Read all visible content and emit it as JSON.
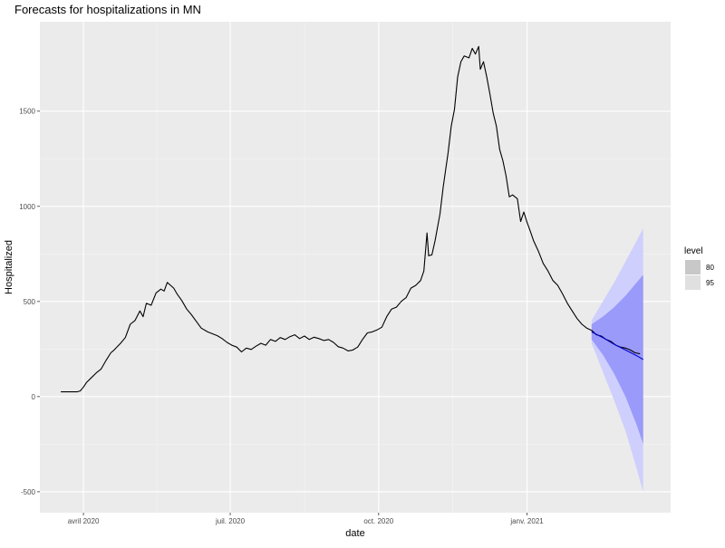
{
  "chart_data": {
    "type": "line",
    "title": "Forecasts for hospitalizations in MN",
    "xlabel": "date",
    "ylabel": "Hospitalized",
    "x_ticks": [
      "avril 2020",
      "juil. 2020",
      "oct. 2020",
      "janv. 2021"
    ],
    "x_tick_dates": [
      "2020-04-01",
      "2020-07-01",
      "2020-10-01",
      "2021-01-01"
    ],
    "xlim": [
      "2020-03-05",
      "2021-03-31"
    ],
    "y_ticks": [
      -500,
      0,
      500,
      1000,
      1500
    ],
    "ylim": [
      -610,
      1970
    ],
    "grid": true,
    "legend": {
      "title": "level",
      "placement": "right",
      "entries": [
        {
          "label": "80",
          "color": "#c8c8c8"
        },
        {
          "label": "95",
          "color": "#e0e0e0"
        }
      ]
    },
    "colors": {
      "panel": "#ebebeb",
      "grid_major": "#ffffff",
      "series": "#000000",
      "forecast_mean": "#0000cc",
      "band_80": "#9a9afb",
      "band_95": "#cfcffd"
    },
    "series": [
      {
        "type": "observed",
        "points": [
          [
            "2020-03-18",
            25
          ],
          [
            "2020-03-20",
            25
          ],
          [
            "2020-03-24",
            25
          ],
          [
            "2020-03-28",
            25
          ],
          [
            "2020-03-30",
            30
          ],
          [
            "2020-04-01",
            50
          ],
          [
            "2020-04-03",
            75
          ],
          [
            "2020-04-06",
            100
          ],
          [
            "2020-04-09",
            125
          ],
          [
            "2020-04-12",
            145
          ],
          [
            "2020-04-15",
            190
          ],
          [
            "2020-04-18",
            230
          ],
          [
            "2020-04-20",
            245
          ],
          [
            "2020-04-24",
            280
          ],
          [
            "2020-04-27",
            310
          ],
          [
            "2020-04-30",
            380
          ],
          [
            "2020-05-03",
            400
          ],
          [
            "2020-05-06",
            450
          ],
          [
            "2020-05-08",
            420
          ],
          [
            "2020-05-10",
            490
          ],
          [
            "2020-05-13",
            480
          ],
          [
            "2020-05-16",
            545
          ],
          [
            "2020-05-19",
            565
          ],
          [
            "2020-05-21",
            555
          ],
          [
            "2020-05-23",
            600
          ],
          [
            "2020-05-25",
            585
          ],
          [
            "2020-05-27",
            570
          ],
          [
            "2020-05-29",
            540
          ],
          [
            "2020-06-01",
            505
          ],
          [
            "2020-06-04",
            460
          ],
          [
            "2020-06-07",
            430
          ],
          [
            "2020-06-10",
            395
          ],
          [
            "2020-06-13",
            360
          ],
          [
            "2020-06-17",
            340
          ],
          [
            "2020-06-20",
            330
          ],
          [
            "2020-06-23",
            320
          ],
          [
            "2020-06-26",
            305
          ],
          [
            "2020-06-29",
            285
          ],
          [
            "2020-07-02",
            270
          ],
          [
            "2020-07-05",
            260
          ],
          [
            "2020-07-08",
            235
          ],
          [
            "2020-07-11",
            255
          ],
          [
            "2020-07-14",
            248
          ],
          [
            "2020-07-17",
            265
          ],
          [
            "2020-07-20",
            280
          ],
          [
            "2020-07-23",
            270
          ],
          [
            "2020-07-26",
            300
          ],
          [
            "2020-07-29",
            290
          ],
          [
            "2020-08-01",
            310
          ],
          [
            "2020-08-04",
            300
          ],
          [
            "2020-08-07",
            315
          ],
          [
            "2020-08-10",
            325
          ],
          [
            "2020-08-13",
            305
          ],
          [
            "2020-08-16",
            318
          ],
          [
            "2020-08-19",
            300
          ],
          [
            "2020-08-22",
            312
          ],
          [
            "2020-08-25",
            305
          ],
          [
            "2020-08-28",
            295
          ],
          [
            "2020-08-31",
            300
          ],
          [
            "2020-09-03",
            285
          ],
          [
            "2020-09-06",
            262
          ],
          [
            "2020-09-09",
            255
          ],
          [
            "2020-09-12",
            240
          ],
          [
            "2020-09-15",
            245
          ],
          [
            "2020-09-18",
            260
          ],
          [
            "2020-09-21",
            300
          ],
          [
            "2020-09-24",
            335
          ],
          [
            "2020-09-27",
            340
          ],
          [
            "2020-09-30",
            350
          ],
          [
            "2020-10-03",
            365
          ],
          [
            "2020-10-06",
            420
          ],
          [
            "2020-10-09",
            460
          ],
          [
            "2020-10-12",
            470
          ],
          [
            "2020-10-15",
            500
          ],
          [
            "2020-10-18",
            520
          ],
          [
            "2020-10-21",
            570
          ],
          [
            "2020-10-24",
            585
          ],
          [
            "2020-10-27",
            610
          ],
          [
            "2020-10-29",
            660
          ],
          [
            "2020-10-31",
            860
          ],
          [
            "2020-11-01",
            740
          ],
          [
            "2020-11-03",
            745
          ],
          [
            "2020-11-05",
            820
          ],
          [
            "2020-11-08",
            960
          ],
          [
            "2020-11-10",
            1100
          ],
          [
            "2020-11-13",
            1280
          ],
          [
            "2020-11-15",
            1420
          ],
          [
            "2020-11-17",
            1510
          ],
          [
            "2020-11-19",
            1680
          ],
          [
            "2020-11-21",
            1760
          ],
          [
            "2020-11-23",
            1790
          ],
          [
            "2020-11-26",
            1780
          ],
          [
            "2020-11-28",
            1830
          ],
          [
            "2020-11-30",
            1800
          ],
          [
            "2020-12-02",
            1840
          ],
          [
            "2020-12-03",
            1720
          ],
          [
            "2020-12-05",
            1760
          ],
          [
            "2020-12-07",
            1680
          ],
          [
            "2020-12-09",
            1590
          ],
          [
            "2020-12-11",
            1490
          ],
          [
            "2020-12-13",
            1420
          ],
          [
            "2020-12-15",
            1300
          ],
          [
            "2020-12-17",
            1240
          ],
          [
            "2020-12-19",
            1160
          ],
          [
            "2020-12-21",
            1050
          ],
          [
            "2020-12-23",
            1060
          ],
          [
            "2020-12-26",
            1040
          ],
          [
            "2020-12-28",
            920
          ],
          [
            "2020-12-30",
            970
          ],
          [
            "2021-01-01",
            915
          ],
          [
            "2021-01-03",
            870
          ],
          [
            "2021-01-05",
            820
          ],
          [
            "2021-01-08",
            765
          ],
          [
            "2021-01-11",
            700
          ],
          [
            "2021-01-14",
            660
          ],
          [
            "2021-01-17",
            610
          ],
          [
            "2021-01-20",
            585
          ],
          [
            "2021-01-23",
            540
          ],
          [
            "2021-01-26",
            490
          ],
          [
            "2021-01-29",
            450
          ],
          [
            "2021-02-01",
            410
          ],
          [
            "2021-02-04",
            380
          ],
          [
            "2021-02-07",
            360
          ],
          [
            "2021-02-10",
            348
          ],
          [
            "2021-02-13",
            325
          ],
          [
            "2021-02-16",
            318
          ],
          [
            "2021-02-19",
            300
          ],
          [
            "2021-02-22",
            290
          ],
          [
            "2021-02-25",
            270
          ],
          [
            "2021-02-28",
            260
          ],
          [
            "2021-03-03",
            255
          ],
          [
            "2021-03-06",
            245
          ],
          [
            "2021-03-09",
            230
          ],
          [
            "2021-03-12",
            225
          ]
        ]
      },
      {
        "type": "forecast_mean",
        "points": [
          [
            "2021-02-10",
            340
          ],
          [
            "2021-02-17",
            310
          ],
          [
            "2021-02-24",
            275
          ],
          [
            "2021-03-03",
            245
          ],
          [
            "2021-03-10",
            215
          ],
          [
            "2021-03-14",
            195
          ]
        ]
      },
      {
        "type": "interval_80",
        "points": [
          [
            "2021-02-10",
            300,
            380
          ],
          [
            "2021-02-17",
            220,
            420
          ],
          [
            "2021-02-24",
            120,
            470
          ],
          [
            "2021-03-03",
            0,
            530
          ],
          [
            "2021-03-10",
            -150,
            600
          ],
          [
            "2021-03-14",
            -250,
            640
          ]
        ]
      },
      {
        "type": "interval_95",
        "points": [
          [
            "2021-02-10",
            280,
            400
          ],
          [
            "2021-02-17",
            130,
            500
          ],
          [
            "2021-02-24",
            -20,
            600
          ],
          [
            "2021-03-03",
            -180,
            710
          ],
          [
            "2021-03-10",
            -380,
            820
          ],
          [
            "2021-03-14",
            -500,
            885
          ]
        ]
      }
    ]
  }
}
